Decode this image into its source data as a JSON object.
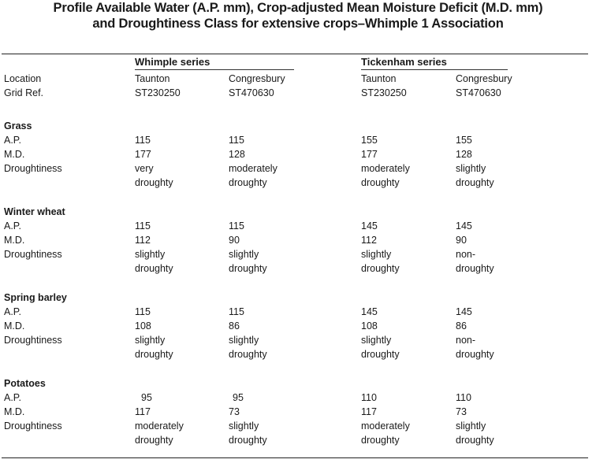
{
  "title": {
    "line1": "Profile Available Water (A.P. mm), Crop-adjusted Mean Moisture Deficit (M.D. mm)",
    "line2": "and Droughtiness Class for extensive crops–Whimple 1 Association"
  },
  "header": {
    "location_label": "Location",
    "gridref_label": "Grid Ref.",
    "series": [
      {
        "name": "Whimple series"
      },
      {
        "name": "Tickenham series"
      }
    ],
    "columns": [
      {
        "location": "Taunton",
        "gridref": "ST230250"
      },
      {
        "location": "Congresbury",
        "gridref": "ST470630"
      },
      {
        "location": "Taunton",
        "gridref": "ST230250"
      },
      {
        "location": "Congresbury",
        "gridref": "ST470630"
      }
    ]
  },
  "row_labels": {
    "ap": "A.P.",
    "md": "M.D.",
    "droughtiness": "Droughtiness"
  },
  "sections": [
    {
      "crop": "Grass",
      "ap": [
        "115",
        "115",
        "155",
        "155"
      ],
      "md": [
        "177",
        "128",
        "177",
        "128"
      ],
      "droughtiness": [
        [
          "very",
          "droughty"
        ],
        [
          "moderately",
          "droughty"
        ],
        [
          "moderately",
          "droughty"
        ],
        [
          "slightly",
          "droughty"
        ]
      ]
    },
    {
      "crop": "Winter wheat",
      "ap": [
        "115",
        "115",
        "145",
        "145"
      ],
      "md": [
        "112",
        "90",
        "112",
        "90"
      ],
      "droughtiness": [
        [
          "slightly",
          "droughty"
        ],
        [
          "slightly",
          "droughty"
        ],
        [
          "slightly",
          "droughty"
        ],
        [
          "non-",
          "droughty"
        ]
      ]
    },
    {
      "crop": "Spring barley",
      "ap": [
        "115",
        "115",
        "145",
        "145"
      ],
      "md": [
        "108",
        "86",
        "108",
        "86"
      ],
      "droughtiness": [
        [
          "slightly",
          "droughty"
        ],
        [
          "slightly",
          "droughty"
        ],
        [
          "slightly",
          "droughty"
        ],
        [
          "non-",
          "droughty"
        ]
      ]
    },
    {
      "crop": "Potatoes",
      "ap": [
        "95",
        "95",
        "110",
        "110"
      ],
      "md": [
        "117",
        "73",
        "117",
        "73"
      ],
      "droughtiness": [
        [
          "moderately",
          "droughty"
        ],
        [
          "slightly",
          "droughty"
        ],
        [
          "moderately",
          "droughty"
        ],
        [
          "slightly",
          "droughty"
        ]
      ]
    }
  ]
}
